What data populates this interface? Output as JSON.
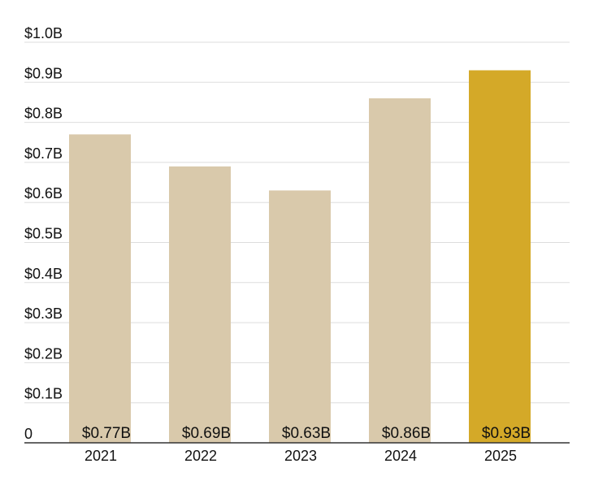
{
  "chart_data": {
    "type": "bar",
    "title": "",
    "xlabel": "",
    "ylabel": "",
    "categories": [
      "2021",
      "2022",
      "2023",
      "2024",
      "2025"
    ],
    "values": [
      0.77,
      0.69,
      0.63,
      0.86,
      0.93
    ],
    "value_labels": [
      "$0.77B",
      "$0.69B",
      "$0.63B",
      "$0.86B",
      "$0.93B"
    ],
    "ylim": [
      0,
      1.0
    ],
    "yticks": [
      {
        "value": 0,
        "label": "0"
      },
      {
        "value": 0.1,
        "label": "$0.1B"
      },
      {
        "value": 0.2,
        "label": "$0.2B"
      },
      {
        "value": 0.3,
        "label": "$0.3B"
      },
      {
        "value": 0.4,
        "label": "$0.4B"
      },
      {
        "value": 0.5,
        "label": "$0.5B"
      },
      {
        "value": 0.6,
        "label": "$0.6B"
      },
      {
        "value": 0.7,
        "label": "$0.7B"
      },
      {
        "value": 0.8,
        "label": "$0.8B"
      },
      {
        "value": 0.9,
        "label": "$0.9B"
      },
      {
        "value": 1.0,
        "label": "$1.0B"
      }
    ],
    "grid": true,
    "highlight_index": 4,
    "colors": {
      "bar": "#d9c9ab",
      "highlight": "#d4a928",
      "grid": "#dddddd",
      "axis": "#333333",
      "text": "#111111"
    }
  }
}
